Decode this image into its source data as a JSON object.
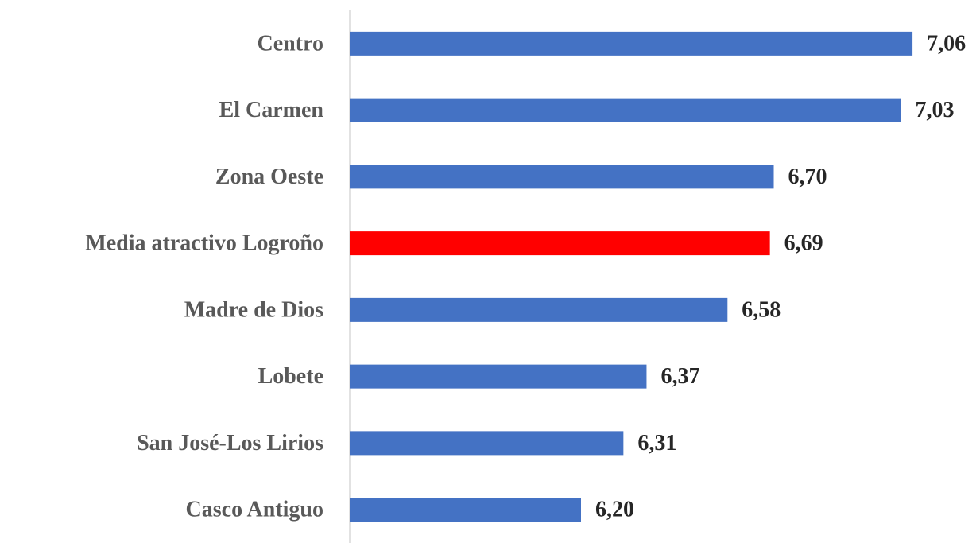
{
  "chart_data": {
    "type": "bar",
    "orientation": "horizontal",
    "categories": [
      "Centro",
      "El Carmen",
      "Zona Oeste",
      "Media atractivo Logroño",
      "Madre de Dios",
      "Lobete",
      "San José-Los Lirios",
      "Casco Antiguo"
    ],
    "values": [
      7.06,
      7.03,
      6.7,
      6.69,
      6.58,
      6.37,
      6.31,
      6.2
    ],
    "value_labels": [
      "7,06",
      "7,03",
      "6,70",
      "6,69",
      "6,58",
      "6,37",
      "6,31",
      "6,20"
    ],
    "colors": [
      "#4472c4",
      "#4472c4",
      "#4472c4",
      "#ff0000",
      "#4472c4",
      "#4472c4",
      "#4472c4",
      "#4472c4"
    ],
    "xlim": [
      5.6,
      7.2
    ]
  }
}
